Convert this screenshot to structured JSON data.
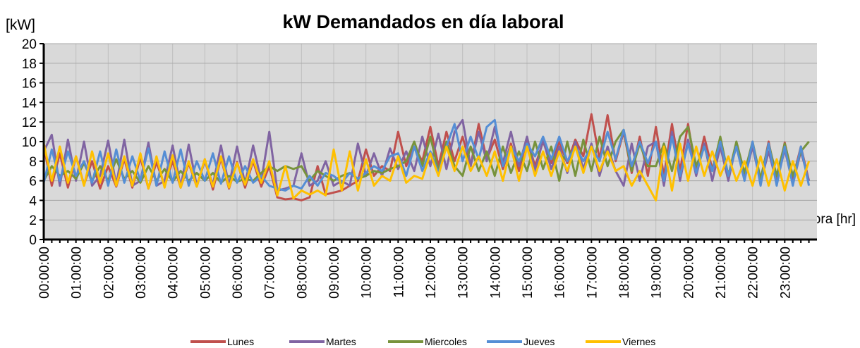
{
  "chart_data": {
    "type": "line",
    "title": "kW Demandados en día laboral",
    "y_label": "[kW]",
    "x_label": "Hora [hr]",
    "ylim": [
      0,
      20
    ],
    "yticks": [
      0,
      2,
      4,
      6,
      8,
      10,
      12,
      14,
      16,
      18,
      20
    ],
    "grid": true,
    "legend": "bottom",
    "categories": [
      "00:00:00",
      null,
      null,
      null,
      "01:00:00",
      null,
      null,
      null,
      "02:00:00",
      null,
      null,
      null,
      "03:00:00",
      null,
      null,
      null,
      "04:00:00",
      null,
      null,
      null,
      "05:00:00",
      null,
      null,
      null,
      "06:00:00",
      null,
      null,
      null,
      "07:00:00",
      null,
      null,
      null,
      "08:00:00",
      null,
      null,
      null,
      "09:00:00",
      null,
      null,
      null,
      "10:00:00",
      null,
      null,
      null,
      "11:00:00",
      null,
      null,
      null,
      "12:00:00",
      null,
      null,
      null,
      "13:00:00",
      null,
      null,
      null,
      "14:00:00",
      null,
      null,
      null,
      "15:00:00",
      null,
      null,
      null,
      "16:00:00",
      null,
      null,
      null,
      "17:00:00",
      null,
      null,
      null,
      "18:00:00",
      null,
      null,
      null,
      "19:00:00",
      null,
      null,
      null,
      "20:00:00",
      null,
      null,
      null,
      "21:00:00",
      null,
      null,
      null,
      "22:00:00",
      null,
      null,
      null,
      "23:00:00",
      null,
      null,
      null
    ],
    "series": [
      {
        "name": "Lunes",
        "color": "#c0504d",
        "values": [
          9.5,
          5.5,
          8.8,
          5.3,
          8.5,
          5.6,
          8.0,
          5.2,
          7.5,
          5.4,
          8.2,
          5.3,
          8.4,
          5.2,
          7.9,
          5.5,
          8.0,
          5.3,
          7.8,
          5.4,
          8.2,
          5.1,
          8.3,
          5.2,
          7.9,
          5.3,
          8.0,
          5.4,
          7.5,
          4.3,
          4.1,
          4.2,
          4.0,
          4.3,
          7.5,
          4.6,
          4.8,
          5.0,
          5.5,
          6.0,
          9.2,
          6.5,
          7.5,
          7.0,
          11.0,
          7.5,
          9.5,
          8.0,
          11.5,
          7.5,
          11.0,
          8.0,
          10.5,
          7.5,
          11.8,
          8.2,
          10.2,
          7.2,
          9.8,
          7.0,
          10.3,
          7.5,
          10.0,
          7.8,
          10.0,
          7.8,
          10.2,
          8.5,
          12.8,
          8.2,
          12.7,
          8.0,
          11.0,
          6.8,
          10.5,
          6.5,
          11.5,
          6.5,
          11.8,
          7.0,
          11.8,
          6.8,
          10.5,
          7.2,
          10.0,
          6.5,
          9.8,
          6.2,
          9.8,
          6.0,
          10.0,
          5.8,
          9.9,
          6.2,
          9.5,
          6.0
        ]
      },
      {
        "name": "Martes",
        "color": "#8064a2",
        "values": [
          9.0,
          10.7,
          5.5,
          10.2,
          6.0,
          10.0,
          5.5,
          6.5,
          10.1,
          5.6,
          10.2,
          5.5,
          6.0,
          9.9,
          5.5,
          6.0,
          9.6,
          5.4,
          9.7,
          5.5,
          8.0,
          5.6,
          9.6,
          5.5,
          9.5,
          5.7,
          9.6,
          6.0,
          11.0,
          5.0,
          5.2,
          5.5,
          8.8,
          5.5,
          6.0,
          8.0,
          5.5,
          6.0,
          5.5,
          9.8,
          6.5,
          8.8,
          6.5,
          9.3,
          7.2,
          9.0,
          7.0,
          10.5,
          7.5,
          10.8,
          7.2,
          11.0,
          12.2,
          7.5,
          11.0,
          8.0,
          11.5,
          7.8,
          11.0,
          7.5,
          10.5,
          7.0,
          10.2,
          7.2,
          9.5,
          6.8,
          10.0,
          7.2,
          9.8,
          6.5,
          9.5,
          7.0,
          5.5,
          9.8,
          6.0,
          9.5,
          10.0,
          5.5,
          11.0,
          6.0,
          10.2,
          6.5,
          9.8,
          6.0,
          9.5,
          6.0,
          9.8,
          6.2,
          9.5,
          5.8,
          9.0,
          5.8,
          9.2,
          5.7,
          9.0,
          6.0
        ]
      },
      {
        "name": "Miercoles",
        "color": "#77933c",
        "values": [
          6.0,
          7.5,
          6.5,
          7.0,
          6.2,
          7.8,
          6.0,
          7.5,
          6.0,
          8.2,
          6.2,
          7.0,
          5.8,
          7.5,
          6.0,
          7.2,
          5.9,
          7.0,
          6.0,
          6.8,
          6.0,
          6.8,
          5.8,
          6.5,
          5.9,
          6.2,
          6.0,
          6.8,
          7.5,
          7.0,
          7.5,
          7.2,
          7.5,
          6.0,
          7.0,
          6.5,
          6.0,
          6.5,
          6.8,
          6.2,
          6.5,
          7.0,
          6.8,
          7.2,
          7.5,
          8.0,
          10.0,
          7.5,
          10.5,
          7.0,
          10.0,
          7.5,
          6.5,
          9.5,
          7.0,
          9.0,
          6.5,
          9.5,
          6.8,
          9.0,
          7.0,
          10.0,
          7.2,
          9.5,
          6.0,
          10.0,
          6.5,
          10.2,
          7.0,
          10.5,
          7.5,
          10.0,
          11.2,
          7.0,
          9.8,
          7.5,
          7.5,
          9.8,
          7.0,
          10.5,
          11.5,
          7.5,
          9.5,
          7.0,
          10.5,
          6.5,
          10.0,
          6.8,
          10.0,
          6.2,
          9.8,
          6.5,
          9.8,
          6.5,
          9.0,
          10.0
        ]
      },
      {
        "name": "Jueves",
        "color": "#558ed5",
        "values": [
          5.8,
          9.2,
          6.0,
          9.0,
          6.5,
          8.0,
          5.8,
          9.0,
          5.5,
          9.2,
          5.8,
          8.5,
          6.0,
          9.3,
          5.5,
          9.0,
          5.8,
          9.2,
          5.5,
          8.0,
          6.0,
          8.8,
          5.7,
          8.5,
          5.8,
          7.5,
          5.8,
          6.5,
          5.5,
          5.2,
          5.0,
          5.5,
          5.2,
          6.5,
          5.5,
          6.8,
          6.5,
          5.8,
          6.8,
          6.2,
          6.8,
          7.5,
          7.0,
          8.5,
          8.8,
          6.5,
          9.5,
          7.0,
          9.0,
          6.8,
          9.5,
          11.8,
          8.0,
          10.5,
          8.2,
          11.5,
          12.2,
          7.5,
          9.5,
          8.0,
          9.8,
          8.5,
          10.5,
          8.2,
          10.5,
          8.0,
          9.5,
          8.0,
          9.5,
          8.0,
          11.0,
          8.2,
          11.2,
          7.5,
          10.0,
          7.8,
          10.0,
          6.0,
          10.5,
          6.5,
          9.8,
          6.8,
          9.5,
          7.0,
          10.0,
          6.5,
          9.5,
          6.0,
          10.0,
          5.5,
          9.8,
          5.5,
          9.5,
          5.5,
          9.5,
          5.5
        ]
      },
      {
        "name": "Viernes",
        "color": "#ffc000",
        "values": [
          9.8,
          6.0,
          9.5,
          5.8,
          8.5,
          5.5,
          9.0,
          5.8,
          8.8,
          5.5,
          8.5,
          5.5,
          8.8,
          5.2,
          8.5,
          5.3,
          8.6,
          5.3,
          8.0,
          5.4,
          8.2,
          5.4,
          8.5,
          5.3,
          7.8,
          5.6,
          8.2,
          5.8,
          8.0,
          4.5,
          7.5,
          4.2,
          5.0,
          4.6,
          5.0,
          4.5,
          9.2,
          5.0,
          9.0,
          5.0,
          8.2,
          5.5,
          6.5,
          6.0,
          8.5,
          5.8,
          6.5,
          6.2,
          8.8,
          6.5,
          9.5,
          7.0,
          9.5,
          7.0,
          8.5,
          6.5,
          9.0,
          6.0,
          9.5,
          6.0,
          9.5,
          6.5,
          9.0,
          6.5,
          9.0,
          7.0,
          9.5,
          6.8,
          9.5,
          7.0,
          9.0,
          7.0,
          7.5,
          5.5,
          7.0,
          5.5,
          4.0,
          9.5,
          5.0,
          9.8,
          6.0,
          9.5,
          6.5,
          9.0,
          6.5,
          8.5,
          6.0,
          8.0,
          5.5,
          8.5,
          5.5,
          8.2,
          5.0,
          8.0,
          5.5,
          8.0
        ]
      }
    ]
  }
}
